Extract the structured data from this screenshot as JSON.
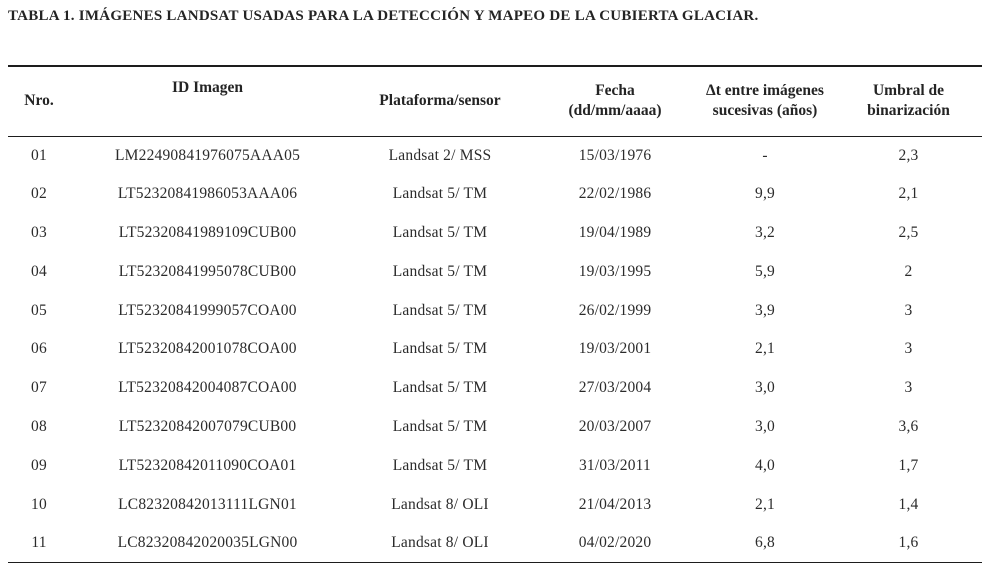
{
  "title": "TABLA 1. IMÁGENES LANDSAT USADAS PARA LA DETECCIÓN Y MAPEO DE LA CUBIERTA GLACIAR.",
  "table": {
    "columns": {
      "nro": "Nro.",
      "id": "ID Imagen",
      "plataforma": "Plataforma/sensor",
      "fecha": "Fecha\n(dd/mm/aaaa)",
      "dt": "Δt entre imágenes\nsucesivas (años)",
      "umbral": "Umbral de\nbinarización"
    },
    "rows": [
      {
        "nro": "01",
        "id": "LM22490841976075AAA05",
        "plataforma": "Landsat 2/ MSS",
        "fecha": "15/03/1976",
        "dt": "-",
        "umbral": "2,3"
      },
      {
        "nro": "02",
        "id": "LT52320841986053AAA06",
        "plataforma": "Landsat 5/ TM",
        "fecha": "22/02/1986",
        "dt": "9,9",
        "umbral": "2,1"
      },
      {
        "nro": "03",
        "id": "LT52320841989109CUB00",
        "plataforma": "Landsat 5/ TM",
        "fecha": "19/04/1989",
        "dt": "3,2",
        "umbral": "2,5"
      },
      {
        "nro": "04",
        "id": "LT52320841995078CUB00",
        "plataforma": "Landsat 5/ TM",
        "fecha": "19/03/1995",
        "dt": "5,9",
        "umbral": "2"
      },
      {
        "nro": "05",
        "id": "LT52320841999057COA00",
        "plataforma": "Landsat 5/ TM",
        "fecha": "26/02/1999",
        "dt": "3,9",
        "umbral": "3"
      },
      {
        "nro": "06",
        "id": "LT52320842001078COA00",
        "plataforma": "Landsat 5/ TM",
        "fecha": "19/03/2001",
        "dt": "2,1",
        "umbral": "3"
      },
      {
        "nro": "07",
        "id": "LT52320842004087COA00",
        "plataforma": "Landsat 5/ TM",
        "fecha": "27/03/2004",
        "dt": "3,0",
        "umbral": "3"
      },
      {
        "nro": "08",
        "id": "LT52320842007079CUB00",
        "plataforma": "Landsat 5/ TM",
        "fecha": "20/03/2007",
        "dt": "3,0",
        "umbral": "3,6"
      },
      {
        "nro": "09",
        "id": "LT52320842011090COA01",
        "plataforma": "Landsat 5/ TM",
        "fecha": "31/03/2011",
        "dt": "4,0",
        "umbral": "1,7"
      },
      {
        "nro": "10",
        "id": "LC82320842013111LGN01",
        "plataforma": "Landsat 8/ OLI",
        "fecha": "21/04/2013",
        "dt": "2,1",
        "umbral": "1,4"
      },
      {
        "nro": "11",
        "id": "LC82320842020035LGN00",
        "plataforma": "Landsat 8/ OLI",
        "fecha": "04/02/2020",
        "dt": "6,8",
        "umbral": "1,6"
      }
    ]
  }
}
